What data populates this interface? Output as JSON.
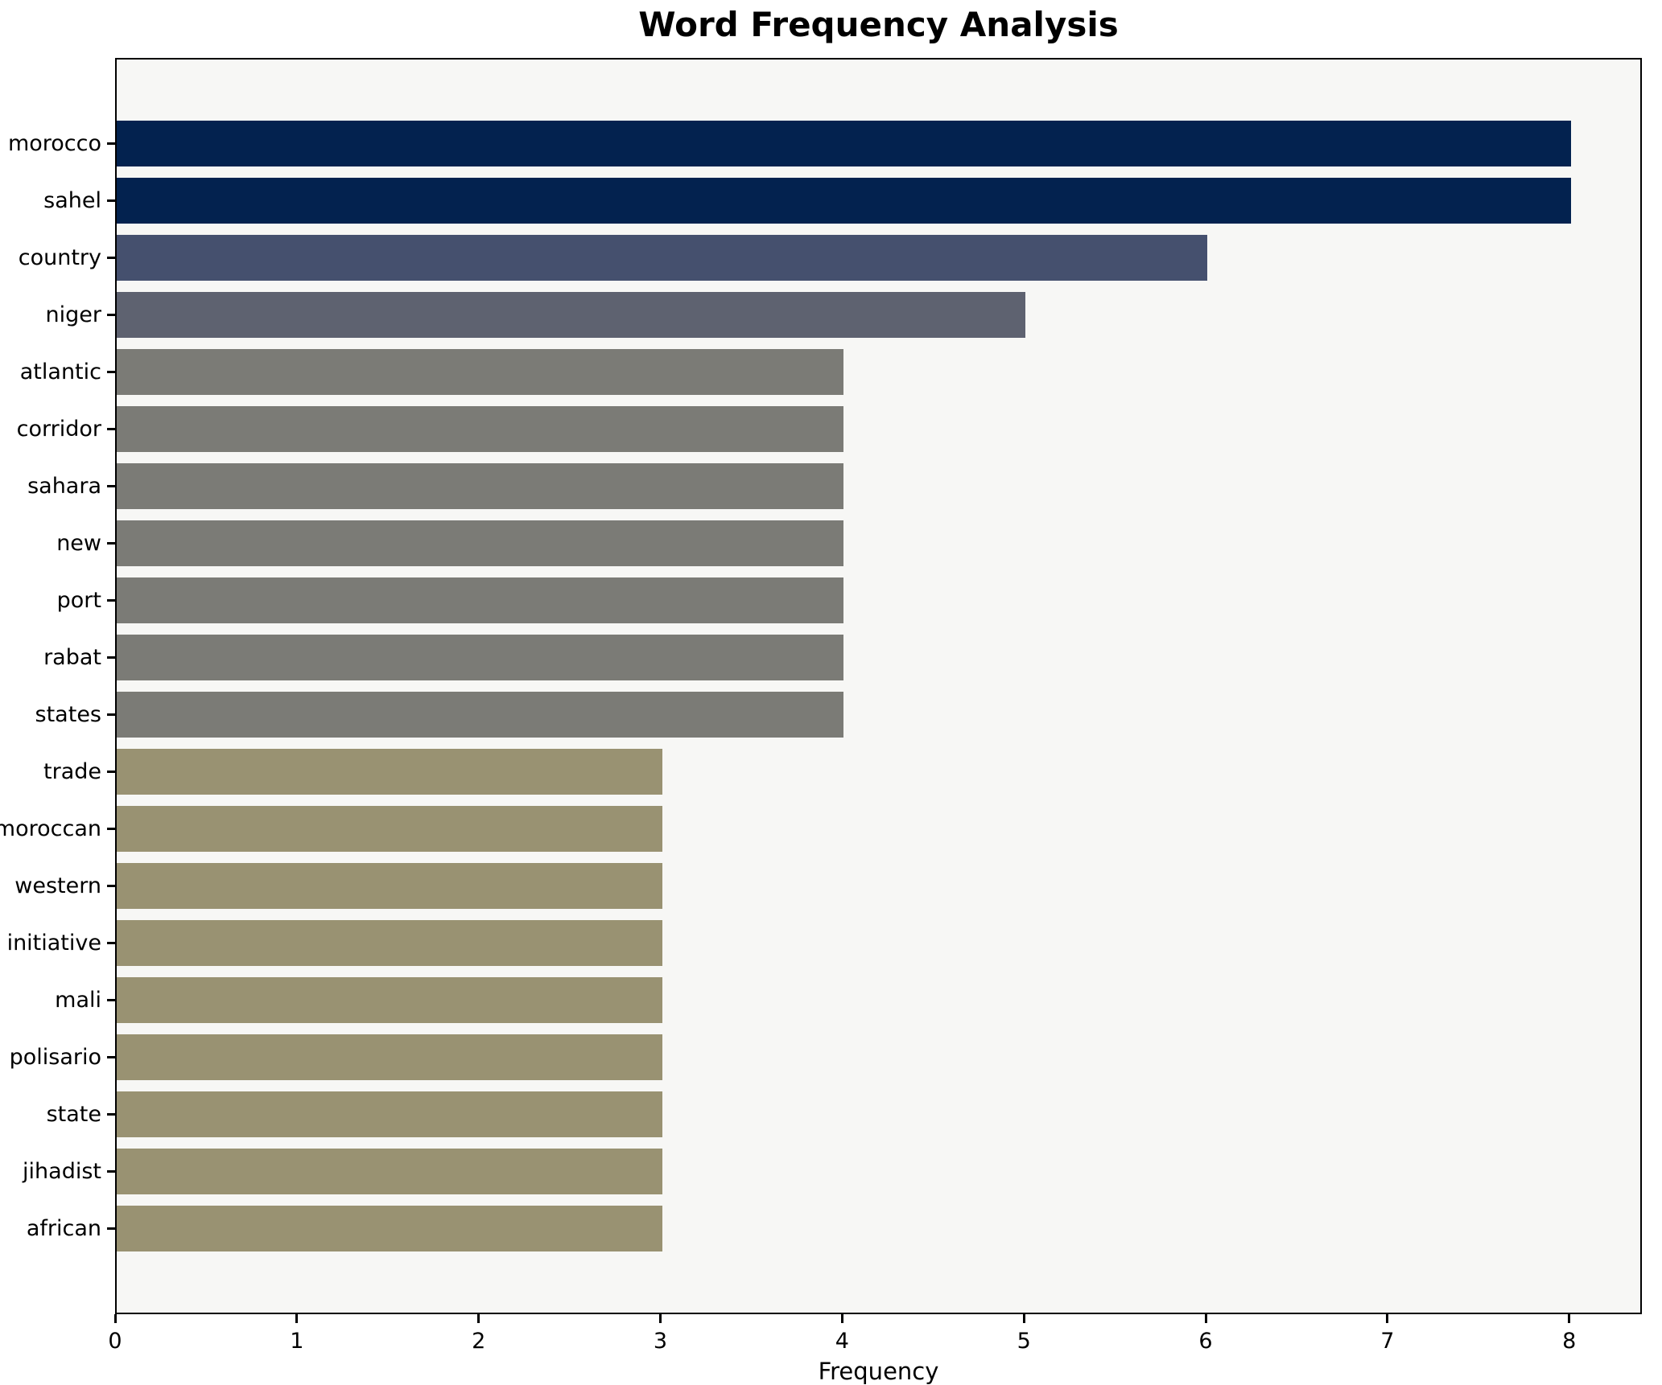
{
  "title": "Word Frequency Analysis",
  "xlabel": "Frequency",
  "chart_data": {
    "type": "bar",
    "orientation": "horizontal",
    "title": "Word Frequency Analysis",
    "xlabel": "Frequency",
    "ylabel": "",
    "categories": [
      "morocco",
      "sahel",
      "country",
      "niger",
      "atlantic",
      "corridor",
      "sahara",
      "new",
      "port",
      "rabat",
      "states",
      "trade",
      "moroccan",
      "western",
      "initiative",
      "mali",
      "polisario",
      "state",
      "jihadist",
      "african"
    ],
    "values": [
      8,
      8,
      6,
      5,
      4,
      4,
      4,
      4,
      4,
      4,
      4,
      3,
      3,
      3,
      3,
      3,
      3,
      3,
      3,
      3
    ],
    "xlim": [
      0,
      8.4
    ],
    "xticks": [
      0,
      1,
      2,
      3,
      4,
      5,
      6,
      7,
      8
    ],
    "grid": false,
    "legend": null,
    "colors_by_value": {
      "8": "#03224f",
      "6": "#45506e",
      "5": "#5e6270",
      "4": "#7b7b76",
      "3": "#999272"
    },
    "plot_background": "#f7f7f5",
    "figure_background": "#ffffff",
    "spine_color": "#000000",
    "text_color": "#000000"
  }
}
